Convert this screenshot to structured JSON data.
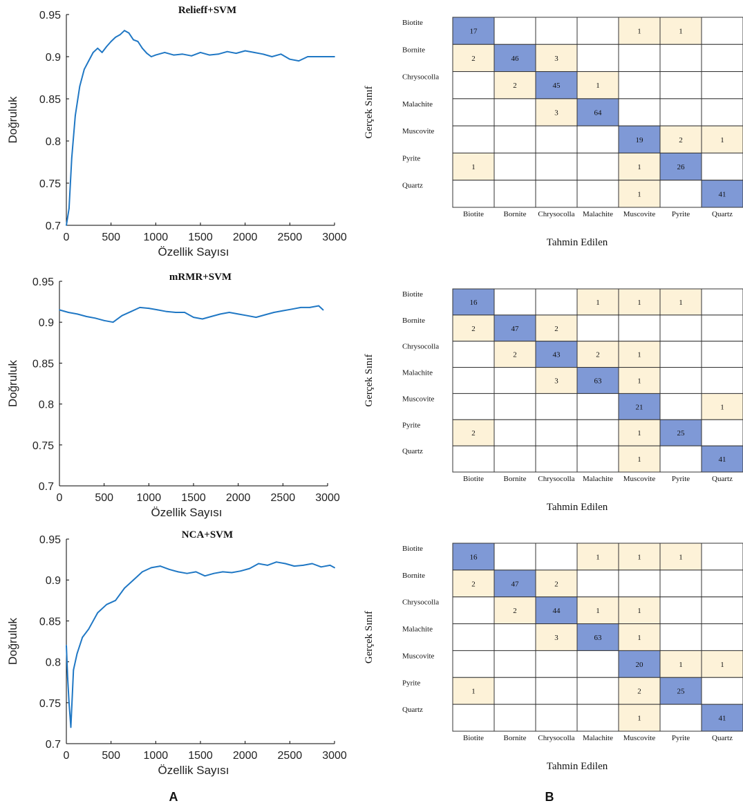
{
  "panel_labels": [
    "A",
    "B"
  ],
  "colors": {
    "line": "#1f77c4",
    "diagonal": "#7f99d6",
    "offdiagonal": "#fdf2d8",
    "grid": "#000000",
    "text": "#222222"
  },
  "chart_data": [
    {
      "type": "line",
      "title": "Relieff+SVM",
      "xlabel": "Özellik Sayısı",
      "ylabel": "Doğruluk",
      "xlim": [
        0,
        3000
      ],
      "ylim": [
        0.7,
        0.95
      ],
      "xticks": [
        "0",
        "500",
        "1000",
        "1500",
        "2000",
        "2500",
        "3000"
      ],
      "yticks": [
        "0.7",
        "0.75",
        "0.8",
        "0.85",
        "0.9",
        "0.95"
      ],
      "series": [
        {
          "x": [
            0,
            30,
            60,
            100,
            150,
            200,
            250,
            300,
            350,
            400,
            450,
            500,
            550,
            600,
            650,
            700,
            750,
            800,
            850,
            900,
            950,
            1000,
            1100,
            1200,
            1300,
            1400,
            1500,
            1600,
            1700,
            1800,
            1900,
            2000,
            2100,
            2200,
            2300,
            2400,
            2500,
            2600,
            2700,
            2800,
            2900,
            3000
          ],
          "y": [
            0.7,
            0.72,
            0.78,
            0.83,
            0.865,
            0.885,
            0.895,
            0.905,
            0.91,
            0.905,
            0.912,
            0.918,
            0.923,
            0.926,
            0.931,
            0.928,
            0.92,
            0.918,
            0.91,
            0.904,
            0.9,
            0.902,
            0.905,
            0.902,
            0.903,
            0.901,
            0.905,
            0.902,
            0.903,
            0.906,
            0.904,
            0.907,
            0.905,
            0.903,
            0.9,
            0.903,
            0.897,
            0.895,
            0.9,
            0.9,
            0.9,
            0.9
          ]
        }
      ]
    },
    {
      "type": "line",
      "title": "mRMR+SVM",
      "xlabel": "Özellik Sayısı",
      "ylabel": "Doğruluk",
      "xlim": [
        0,
        3000
      ],
      "ylim": [
        0.7,
        0.95
      ],
      "xticks": [
        "0",
        "500",
        "1000",
        "1500",
        "2000",
        "2500",
        "3000"
      ],
      "yticks": [
        "0.7",
        "0.75",
        "0.8",
        "0.85",
        "0.9",
        "0.95"
      ],
      "series": [
        {
          "x": [
            0,
            100,
            200,
            300,
            400,
            500,
            600,
            700,
            800,
            900,
            1000,
            1100,
            1200,
            1300,
            1400,
            1500,
            1600,
            1700,
            1800,
            1900,
            2000,
            2100,
            2200,
            2300,
            2400,
            2500,
            2600,
            2700,
            2800,
            2900,
            2950
          ],
          "y": [
            0.915,
            0.912,
            0.91,
            0.907,
            0.905,
            0.902,
            0.9,
            0.908,
            0.913,
            0.918,
            0.917,
            0.915,
            0.913,
            0.912,
            0.912,
            0.906,
            0.904,
            0.907,
            0.91,
            0.912,
            0.91,
            0.908,
            0.906,
            0.909,
            0.912,
            0.914,
            0.916,
            0.918,
            0.918,
            0.92,
            0.915
          ]
        }
      ]
    },
    {
      "type": "line",
      "title": "NCA+SVM",
      "xlabel": "Özellik Sayısı",
      "ylabel": "Doğruluk",
      "xlim": [
        0,
        3000
      ],
      "ylim": [
        0.7,
        0.95
      ],
      "xticks": [
        "0",
        "500",
        "1000",
        "1500",
        "2000",
        "2500",
        "3000"
      ],
      "yticks": [
        "0.7",
        "0.75",
        "0.8",
        "0.85",
        "0.9",
        "0.95"
      ],
      "series": [
        {
          "x": [
            0,
            15,
            30,
            50,
            80,
            120,
            180,
            250,
            350,
            450,
            550,
            650,
            750,
            850,
            950,
            1050,
            1150,
            1250,
            1350,
            1450,
            1550,
            1650,
            1750,
            1850,
            1950,
            2050,
            2150,
            2250,
            2350,
            2450,
            2550,
            2650,
            2750,
            2850,
            2950,
            3000
          ],
          "y": [
            0.82,
            0.78,
            0.75,
            0.72,
            0.79,
            0.81,
            0.83,
            0.84,
            0.86,
            0.87,
            0.875,
            0.89,
            0.9,
            0.91,
            0.915,
            0.917,
            0.913,
            0.91,
            0.908,
            0.91,
            0.905,
            0.908,
            0.91,
            0.909,
            0.911,
            0.914,
            0.92,
            0.918,
            0.922,
            0.92,
            0.917,
            0.918,
            0.92,
            0.916,
            0.918,
            0.915
          ]
        }
      ]
    },
    {
      "type": "heatmap",
      "xlabel": "Tahmin Edilen",
      "ylabel": "Gerçek Sınıf",
      "rows": [
        "Biotite",
        "Bornite",
        "Chrysocolla",
        "Malachite",
        "Muscovite",
        "Pyrite",
        "Quartz"
      ],
      "cols": [
        "Biotite",
        "Bornite",
        "Chrysocolla",
        "Malachite",
        "Muscovite",
        "Pyrite",
        "Quartz"
      ],
      "values": [
        [
          17,
          null,
          null,
          null,
          1,
          1,
          null
        ],
        [
          2,
          46,
          3,
          null,
          null,
          null,
          null
        ],
        [
          null,
          2,
          45,
          1,
          null,
          null,
          null
        ],
        [
          null,
          null,
          3,
          64,
          null,
          null,
          null
        ],
        [
          null,
          null,
          null,
          null,
          19,
          2,
          1
        ],
        [
          1,
          null,
          null,
          null,
          1,
          26,
          null
        ],
        [
          null,
          null,
          null,
          null,
          1,
          null,
          41
        ]
      ]
    },
    {
      "type": "heatmap",
      "xlabel": "Tahmin Edilen",
      "ylabel": "Gerçek Sınıf",
      "rows": [
        "Biotite",
        "Bornite",
        "Chrysocolla",
        "Malachite",
        "Muscovite",
        "Pyrite",
        "Quartz"
      ],
      "cols": [
        "Biotite",
        "Bornite",
        "Chrysocolla",
        "Malachite",
        "Muscovite",
        "Pyrite",
        "Quartz"
      ],
      "values": [
        [
          16,
          null,
          null,
          1,
          1,
          1,
          null
        ],
        [
          2,
          47,
          2,
          null,
          null,
          null,
          null
        ],
        [
          null,
          2,
          43,
          2,
          1,
          null,
          null
        ],
        [
          null,
          null,
          3,
          63,
          1,
          null,
          null
        ],
        [
          null,
          null,
          null,
          null,
          21,
          null,
          1
        ],
        [
          2,
          null,
          null,
          null,
          1,
          25,
          null
        ],
        [
          null,
          null,
          null,
          null,
          1,
          null,
          41
        ]
      ]
    },
    {
      "type": "heatmap",
      "xlabel": "Tahmin Edilen",
      "ylabel": "Gerçek Sınıf",
      "rows": [
        "Biotite",
        "Bornite",
        "Chrysocolla",
        "Malachite",
        "Muscovite",
        "Pyrite",
        "Quartz"
      ],
      "cols": [
        "Biotite",
        "Bornite",
        "Chrysocolla",
        "Malachite",
        "Muscovite",
        "Pyrite",
        "Quartz"
      ],
      "values": [
        [
          16,
          null,
          null,
          1,
          1,
          1,
          null
        ],
        [
          2,
          47,
          2,
          null,
          null,
          null,
          null
        ],
        [
          null,
          2,
          44,
          1,
          1,
          null,
          null
        ],
        [
          null,
          null,
          3,
          63,
          1,
          null,
          null
        ],
        [
          null,
          null,
          null,
          null,
          20,
          1,
          1
        ],
        [
          1,
          null,
          null,
          null,
          2,
          25,
          null
        ],
        [
          null,
          null,
          null,
          null,
          1,
          null,
          41
        ]
      ]
    }
  ]
}
